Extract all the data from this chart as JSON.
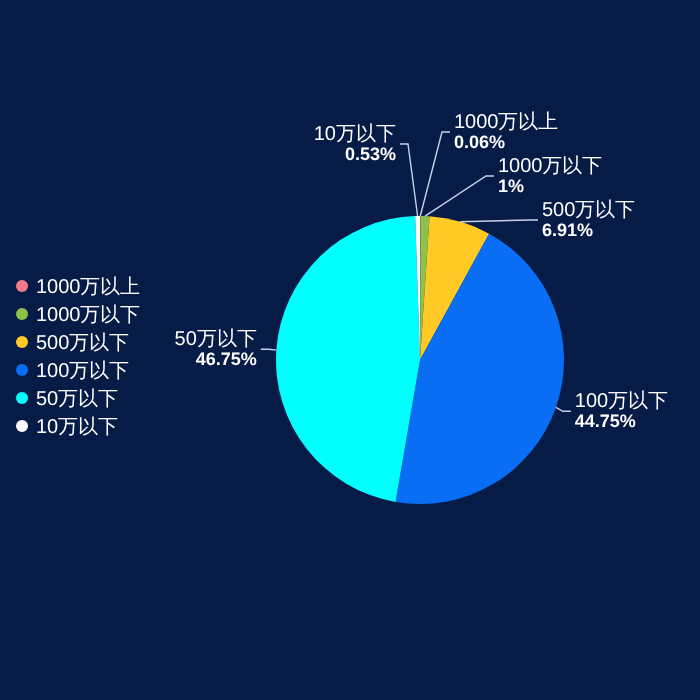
{
  "chart_data": {
    "type": "pie",
    "categories": [
      "1000万以上",
      "1000万以下",
      "500万以下",
      "100万以下",
      "50万以下",
      "10万以下"
    ],
    "values": [
      0.06,
      1,
      6.91,
      44.75,
      46.75,
      0.53
    ],
    "colors": [
      "#f47a8c",
      "#8bc34a",
      "#ffc926",
      "#0a6ef5",
      "#00ffff",
      "#ffffff"
    ],
    "value_labels": [
      "0.06%",
      "1%",
      "6.91%",
      "44.75%",
      "46.75%",
      "0.53%"
    ],
    "legend": "left"
  }
}
